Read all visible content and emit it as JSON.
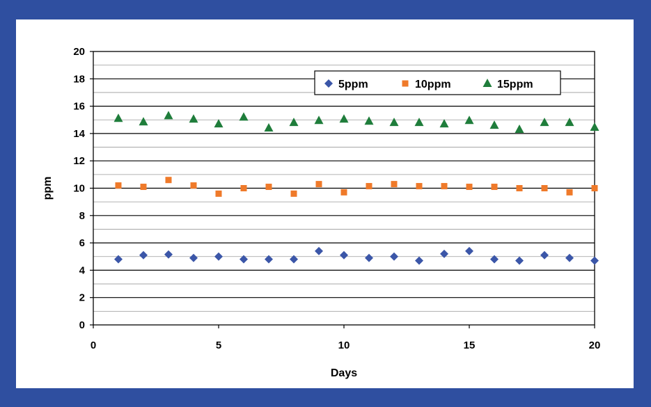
{
  "colors": {
    "frame_border": "#2f4fa0",
    "series_5ppm": "#3b56a8",
    "series_10ppm": "#ef7a2a",
    "series_15ppm": "#1f7d3b"
  },
  "chart_data": {
    "type": "scatter",
    "title": "",
    "xlabel": "Days",
    "ylabel": "ppm",
    "xlim": [
      0,
      20
    ],
    "ylim": [
      0,
      20
    ],
    "x_ticks": [
      0,
      5,
      10,
      15,
      20
    ],
    "y_ticks": [
      0,
      2,
      4,
      6,
      8,
      10,
      12,
      14,
      16,
      18,
      20
    ],
    "grid": "horizontal major and minor gridlines",
    "legend_position": "top-right",
    "series": [
      {
        "name": "5ppm",
        "marker": "diamond",
        "x": [
          1,
          2,
          3,
          4,
          5,
          6,
          7,
          8,
          9,
          10,
          11,
          12,
          13,
          14,
          15,
          16,
          17,
          18,
          19,
          20
        ],
        "y": [
          4.8,
          5.1,
          5.15,
          4.9,
          5.0,
          4.8,
          4.8,
          4.8,
          5.4,
          5.1,
          4.9,
          5.0,
          4.7,
          5.2,
          5.4,
          4.8,
          4.7,
          5.1,
          4.9,
          4.7
        ]
      },
      {
        "name": "10ppm",
        "marker": "square",
        "x": [
          1,
          2,
          3,
          4,
          5,
          6,
          7,
          8,
          9,
          10,
          11,
          12,
          13,
          14,
          15,
          16,
          17,
          18,
          19,
          20
        ],
        "y": [
          10.2,
          10.1,
          10.6,
          10.2,
          9.6,
          10.0,
          10.1,
          9.6,
          10.3,
          9.7,
          10.15,
          10.3,
          10.15,
          10.15,
          10.1,
          10.1,
          10.0,
          10.0,
          9.7,
          10.0
        ]
      },
      {
        "name": "15ppm",
        "marker": "triangle",
        "x": [
          1,
          2,
          3,
          4,
          5,
          6,
          7,
          8,
          9,
          10,
          11,
          12,
          13,
          14,
          15,
          16,
          17,
          18,
          19,
          20
        ],
        "y": [
          15.1,
          14.85,
          15.3,
          15.05,
          14.7,
          15.2,
          14.4,
          14.8,
          14.95,
          15.05,
          14.9,
          14.8,
          14.8,
          14.7,
          14.95,
          14.6,
          14.3,
          14.8,
          14.8,
          14.45
        ]
      }
    ]
  }
}
